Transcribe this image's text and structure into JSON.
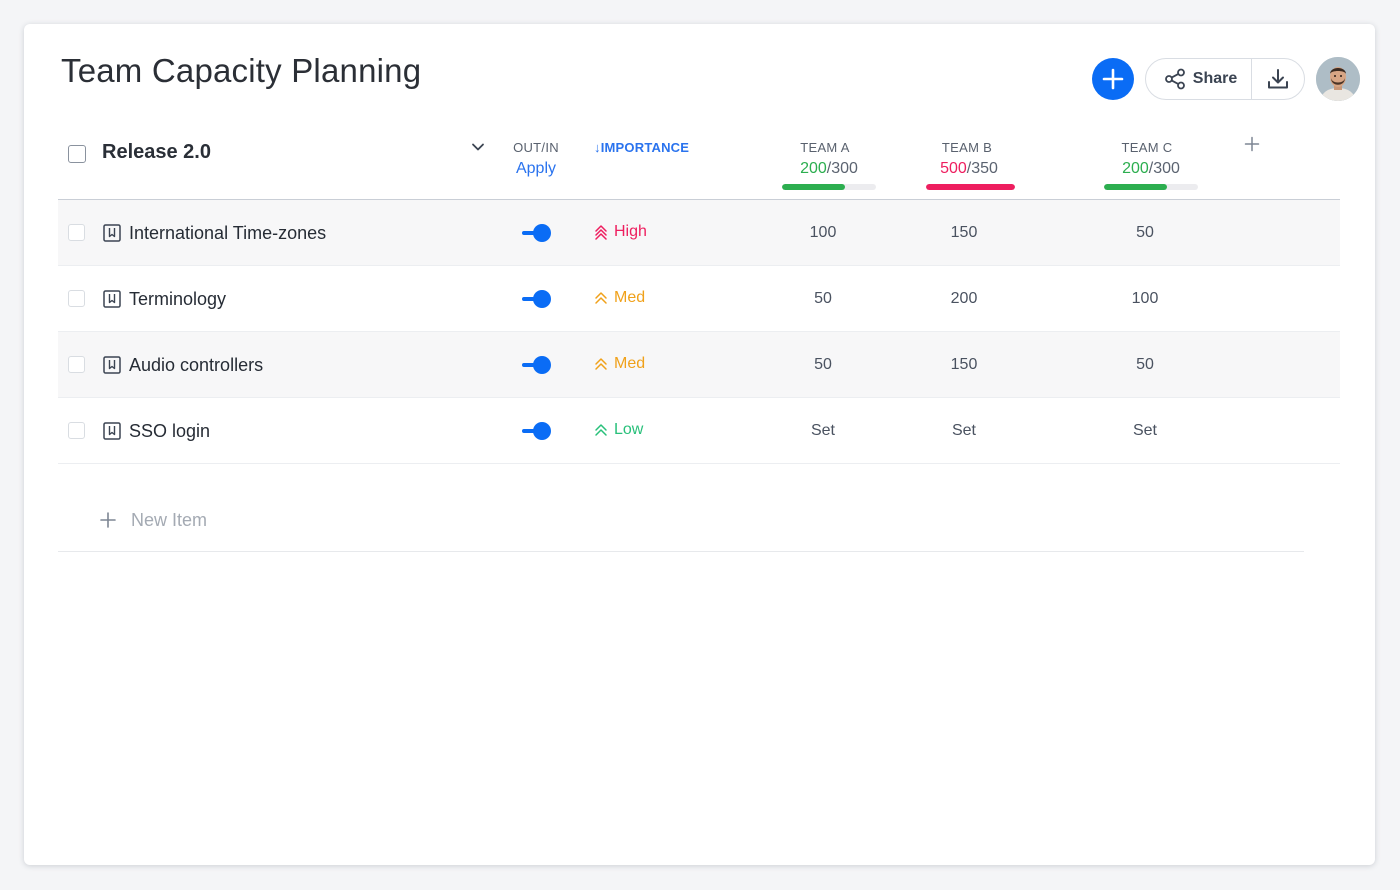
{
  "page": {
    "title": "Team Capacity Planning"
  },
  "toolbar": {
    "share_label": "Share"
  },
  "group": {
    "name": "Release 2.0"
  },
  "columns": {
    "out_in": {
      "label": "OUT/IN",
      "action": "Apply"
    },
    "importance": {
      "label": "IMPORTANCE",
      "sort_arrow": "↓"
    }
  },
  "teams": [
    {
      "name": "TEAM A",
      "used": "200",
      "total": "/300",
      "fill_ratio": 0.667,
      "status": "ok"
    },
    {
      "name": "TEAM B",
      "used": "500",
      "total": "/350",
      "fill_ratio": 1.0,
      "status": "over"
    },
    {
      "name": "TEAM C",
      "used": "200",
      "total": "/300",
      "fill_ratio": 0.667,
      "status": "ok"
    }
  ],
  "rows": [
    {
      "name": "International Time-zones",
      "toggle": "on",
      "priority": "High",
      "priority_color": "#ee1e5f",
      "values": [
        "100",
        "150",
        "50"
      ]
    },
    {
      "name": "Terminology",
      "toggle": "on",
      "priority": "Med",
      "priority_color": "#f0a11a",
      "values": [
        "50",
        "200",
        "100"
      ]
    },
    {
      "name": "Audio controllers",
      "toggle": "on",
      "priority": "Med",
      "priority_color": "#f0a11a",
      "values": [
        "50",
        "150",
        "50"
      ]
    },
    {
      "name": "SSO login",
      "toggle": "on",
      "priority": "Low",
      "priority_color": "#28c07a",
      "values": [
        "Set",
        "Set",
        "Set"
      ]
    }
  ],
  "new_item": {
    "label": "New Item"
  },
  "colors": {
    "accent": "#0a6cf5",
    "ok": "#2cae4f",
    "over": "#ee1e5f",
    "med": "#f0a11a",
    "low": "#28c07a"
  }
}
